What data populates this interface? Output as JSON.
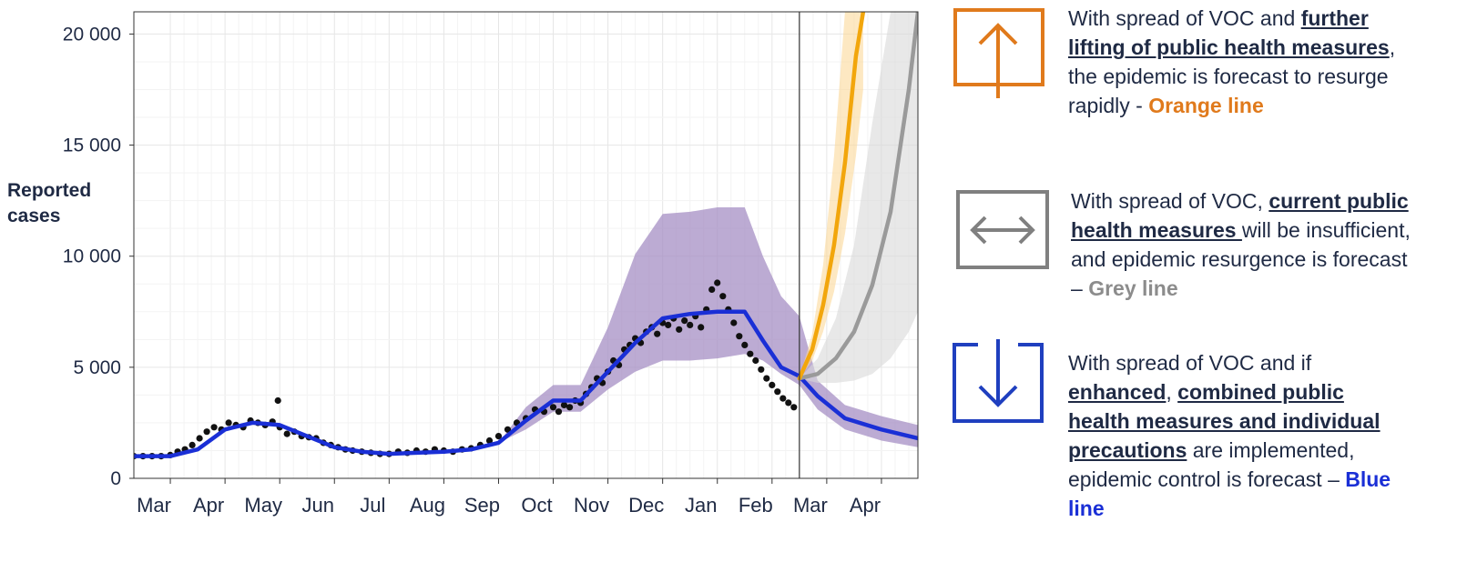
{
  "y_axis_title_line1": "Reported",
  "y_axis_title_line2": "cases",
  "chart_data": {
    "type": "line",
    "ylabel": "Reported cases",
    "ylim": [
      0,
      21000
    ],
    "y_ticks": [
      0,
      5000,
      10000,
      15000,
      20000
    ],
    "y_tick_labels": [
      "0",
      "5 000",
      "10 000",
      "15 000",
      "20 000"
    ],
    "x_tick_labels": [
      "Mar",
      "Apr",
      "May",
      "Jun",
      "Jul",
      "Aug",
      "Sep",
      "Oct",
      "Nov",
      "Dec",
      "Jan",
      "Feb",
      "Mar",
      "Apr"
    ],
    "x_month_start_day": [
      0,
      30,
      60,
      90,
      120,
      150,
      180,
      210,
      240,
      270,
      300,
      330,
      360,
      390
    ],
    "x_range_days": [
      -20,
      410
    ],
    "forecast_start_day": 345,
    "grid": true,
    "series": [
      {
        "name": "Blue line",
        "color": "#1a2fd6",
        "band_color": "#7a86f0",
        "x": [
          -20,
          0,
          15,
          30,
          45,
          60,
          75,
          90,
          105,
          120,
          135,
          150,
          165,
          180,
          195,
          210,
          225,
          240,
          255,
          270,
          285,
          300,
          315,
          325,
          335,
          345,
          355,
          370,
          390,
          410
        ],
        "y": [
          1000,
          1000,
          1300,
          2200,
          2500,
          2400,
          1900,
          1400,
          1200,
          1100,
          1150,
          1200,
          1300,
          1600,
          2600,
          3500,
          3500,
          4800,
          6100,
          7200,
          7400,
          7500,
          7500,
          6200,
          5000,
          4600,
          3700,
          2700,
          2200,
          1800
        ],
        "lower": [
          1000,
          1000,
          1300,
          2200,
          2500,
          2400,
          1900,
          1400,
          1200,
          1100,
          1150,
          1200,
          1300,
          1600,
          2200,
          3000,
          3000,
          4000,
          4800,
          5300,
          5300,
          5400,
          5600,
          5300,
          4700,
          4200,
          3100,
          2200,
          1700,
          1400
        ],
        "upper": [
          1000,
          1000,
          1300,
          2200,
          2500,
          2400,
          1900,
          1400,
          1200,
          1100,
          1150,
          1200,
          1300,
          1600,
          3200,
          4200,
          4200,
          6800,
          10100,
          11900,
          12000,
          12200,
          12200,
          10000,
          8200,
          7300,
          4400,
          3300,
          2800,
          2400
        ]
      },
      {
        "name": "Grey line",
        "color": "#9a9a9a",
        "band_color": "#d9d9d9",
        "x": [
          345,
          355,
          365,
          375,
          385,
          395,
          405,
          410
        ],
        "y": [
          4500,
          4700,
          5400,
          6600,
          8700,
          12000,
          17500,
          21000
        ],
        "lower": [
          4500,
          4300,
          4300,
          4400,
          4700,
          5400,
          6600,
          7500
        ],
        "upper": [
          4500,
          5400,
          7200,
          10500,
          16000,
          21000,
          21000,
          21000
        ]
      },
      {
        "name": "Orange line",
        "color": "#f2a60c",
        "band_color": "#fbd89a",
        "x": [
          345,
          352,
          358,
          364,
          370,
          376,
          380
        ],
        "y": [
          4500,
          5800,
          7800,
          10500,
          14200,
          19000,
          21000
        ],
        "lower": [
          4500,
          5300,
          6600,
          8400,
          11000,
          14500,
          17500
        ],
        "upper": [
          4500,
          6500,
          9600,
          14500,
          21000,
          21000,
          21000
        ]
      }
    ],
    "observed_points": {
      "name": "Reported cases",
      "color": "#111111",
      "x": [
        -20,
        -15,
        -10,
        -5,
        0,
        4,
        8,
        12,
        16,
        20,
        24,
        28,
        32,
        36,
        40,
        44,
        48,
        52,
        56,
        60,
        64,
        68,
        72,
        76,
        80,
        84,
        88,
        92,
        96,
        100,
        105,
        110,
        115,
        120,
        125,
        130,
        135,
        140,
        145,
        150,
        155,
        160,
        165,
        170,
        175,
        180,
        185,
        190,
        195,
        200,
        205,
        210,
        213,
        216,
        219,
        222,
        225,
        228,
        231,
        234,
        237,
        240,
        243,
        246,
        249,
        252,
        255,
        258,
        261,
        264,
        267,
        270,
        273,
        276,
        279,
        282,
        285,
        288,
        291,
        294,
        297,
        300,
        303,
        306,
        309,
        312,
        315,
        318,
        321,
        324,
        327,
        330,
        333,
        336,
        339,
        342,
        59
      ],
      "y": [
        1000,
        1000,
        1000,
        1000,
        1050,
        1200,
        1300,
        1500,
        1800,
        2100,
        2300,
        2200,
        2500,
        2400,
        2300,
        2600,
        2500,
        2400,
        2550,
        2300,
        2000,
        2100,
        1900,
        1850,
        1800,
        1600,
        1500,
        1400,
        1300,
        1250,
        1200,
        1150,
        1100,
        1100,
        1200,
        1150,
        1250,
        1200,
        1300,
        1250,
        1200,
        1300,
        1350,
        1500,
        1700,
        1900,
        2200,
        2500,
        2700,
        3100,
        3000,
        3200,
        3000,
        3300,
        3200,
        3500,
        3400,
        3800,
        4100,
        4500,
        4300,
        4800,
        5300,
        5100,
        5800,
        6000,
        6300,
        6100,
        6600,
        6800,
        6500,
        7000,
        6900,
        7200,
        6700,
        7100,
        6900,
        7300,
        6800,
        7600,
        8500,
        8800,
        8200,
        7600,
        7000,
        6400,
        6000,
        5600,
        5300,
        4900,
        4500,
        4200,
        3900,
        3600,
        3400,
        3200,
        3500
      ]
    }
  },
  "panel_orange": {
    "icon": "arrow-up-icon",
    "color": "#e07a1c",
    "t1": "With spread of VOC and ",
    "b1": "further lifting of public health measures",
    "t2": ", the epidemic is forecast to resurge rapidly - ",
    "tag": "Orange line"
  },
  "panel_grey": {
    "icon": "arrow-left-right-icon",
    "color": "#808080",
    "t1": "With spread of VOC, ",
    "b1": "current public health measures ",
    "t2": "will be insufficient, and epidemic resurgence is forecast – ",
    "tag": "Grey line"
  },
  "panel_blue": {
    "icon": "arrow-down-icon",
    "color": "#1f3fbf",
    "t1": "With spread of VOC and if ",
    "b1": "enhanced",
    "t2": ", ",
    "b2": "combined public health measures and individual precautions",
    "t3": " are implemented, epidemic control is forecast – ",
    "tag": "Blue line"
  }
}
